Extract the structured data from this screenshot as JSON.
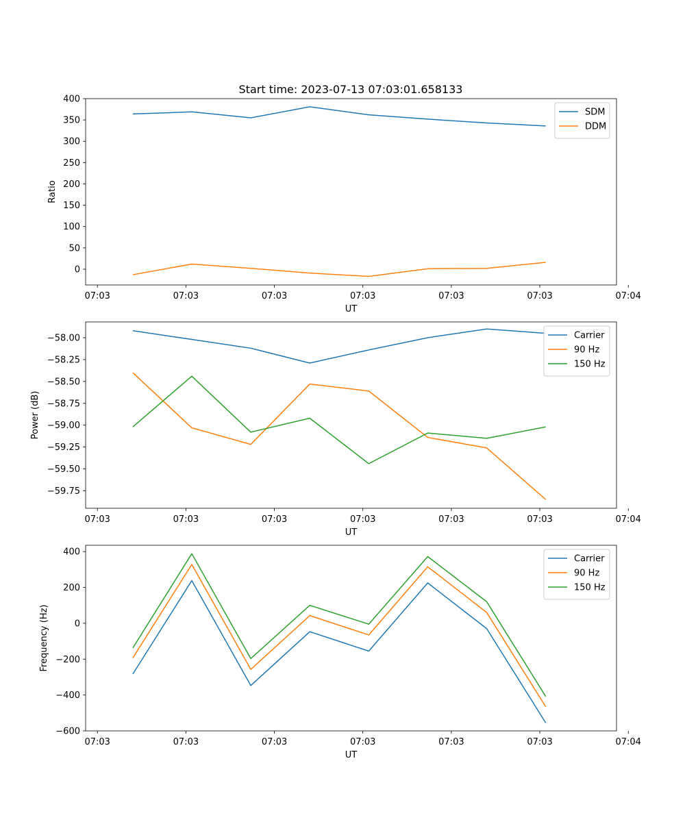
{
  "figure_title": "Start time: 2023-07-13 07:03:01.658133",
  "chart_data": [
    {
      "type": "line",
      "title": "Start time: 2023-07-13 07:03:01.658133",
      "xlabel": "UT",
      "ylabel": "Ratio",
      "x": [
        1,
        2,
        3,
        4,
        5,
        6,
        7,
        8
      ],
      "xlim": [
        0.2,
        9.2
      ],
      "x_ticks": [
        0.4,
        1.9,
        3.4,
        4.9,
        6.4,
        7.9,
        9.4
      ],
      "x_tick_labels": [
        "07:03",
        "07:03",
        "07:03",
        "07:03",
        "07:03",
        "07:03",
        "07:04"
      ],
      "ylim": [
        -37,
        400
      ],
      "y_ticks": [
        0,
        50,
        100,
        150,
        200,
        250,
        300,
        350,
        400
      ],
      "y_tick_labels": [
        "0",
        "50",
        "100",
        "150",
        "200",
        "250",
        "300",
        "350",
        "400"
      ],
      "legend_position": "top-right",
      "series": [
        {
          "name": "SDM",
          "color": "#1f77b4",
          "values": [
            364,
            369,
            355,
            381,
            362,
            352,
            343,
            336
          ]
        },
        {
          "name": "DDM",
          "color": "#ff7f0e",
          "values": [
            -13,
            12,
            2,
            -9,
            -17,
            1,
            2,
            16
          ]
        }
      ]
    },
    {
      "type": "line",
      "xlabel": "UT",
      "ylabel": "Power (dB)",
      "x": [
        1,
        2,
        3,
        4,
        5,
        6,
        7,
        8
      ],
      "xlim": [
        0.2,
        9.2
      ],
      "x_ticks": [
        0.4,
        1.9,
        3.4,
        4.9,
        6.4,
        7.9,
        9.4
      ],
      "x_tick_labels": [
        "07:03",
        "07:03",
        "07:03",
        "07:03",
        "07:03",
        "07:03",
        "07:04"
      ],
      "ylim": [
        -59.95,
        -57.82
      ],
      "y_ticks": [
        -58.0,
        -58.25,
        -58.5,
        -58.75,
        -59.0,
        -59.25,
        -59.5,
        -59.75
      ],
      "y_tick_labels": [
        "−58.00",
        "−58.25",
        "−58.50",
        "−58.75",
        "−59.00",
        "−59.25",
        "−59.50",
        "−59.75"
      ],
      "legend_position": "top-right",
      "series": [
        {
          "name": "Carrier",
          "color": "#1f77b4",
          "values": [
            -57.92,
            -58.02,
            -58.12,
            -58.29,
            -58.14,
            -58.0,
            -57.9,
            -57.95
          ]
        },
        {
          "name": "90 Hz",
          "color": "#ff7f0e",
          "values": [
            -58.4,
            -59.03,
            -59.22,
            -58.53,
            -58.61,
            -59.14,
            -59.26,
            -59.85
          ]
        },
        {
          "name": "150 Hz",
          "color": "#2ca02c",
          "values": [
            -59.02,
            -58.44,
            -59.08,
            -58.92,
            -59.44,
            -59.09,
            -59.15,
            -59.02
          ]
        }
      ]
    },
    {
      "type": "line",
      "xlabel": "UT",
      "ylabel": "Frequency (Hz)",
      "x": [
        1,
        2,
        3,
        4,
        5,
        6,
        7,
        8
      ],
      "xlim": [
        0.2,
        9.2
      ],
      "x_ticks": [
        0.4,
        1.9,
        3.4,
        4.9,
        6.4,
        7.9,
        9.4
      ],
      "x_tick_labels": [
        "07:03",
        "07:03",
        "07:03",
        "07:03",
        "07:03",
        "07:03",
        "07:04"
      ],
      "ylim": [
        -600,
        435
      ],
      "y_ticks": [
        400,
        200,
        0,
        -200,
        -400,
        -600
      ],
      "y_tick_labels": [
        "400",
        "200",
        "0",
        "−200",
        "−400",
        "−600"
      ],
      "legend_position": "top-right",
      "series": [
        {
          "name": "Carrier",
          "color": "#1f77b4",
          "values": [
            -283,
            238,
            -347,
            -47,
            -155,
            225,
            -30,
            -555
          ]
        },
        {
          "name": "90 Hz",
          "color": "#ff7f0e",
          "values": [
            -193,
            328,
            -257,
            43,
            -65,
            315,
            60,
            -465
          ]
        },
        {
          "name": "150 Hz",
          "color": "#2ca02c",
          "values": [
            -138,
            388,
            -197,
            100,
            -5,
            372,
            120,
            -408
          ]
        }
      ]
    }
  ]
}
